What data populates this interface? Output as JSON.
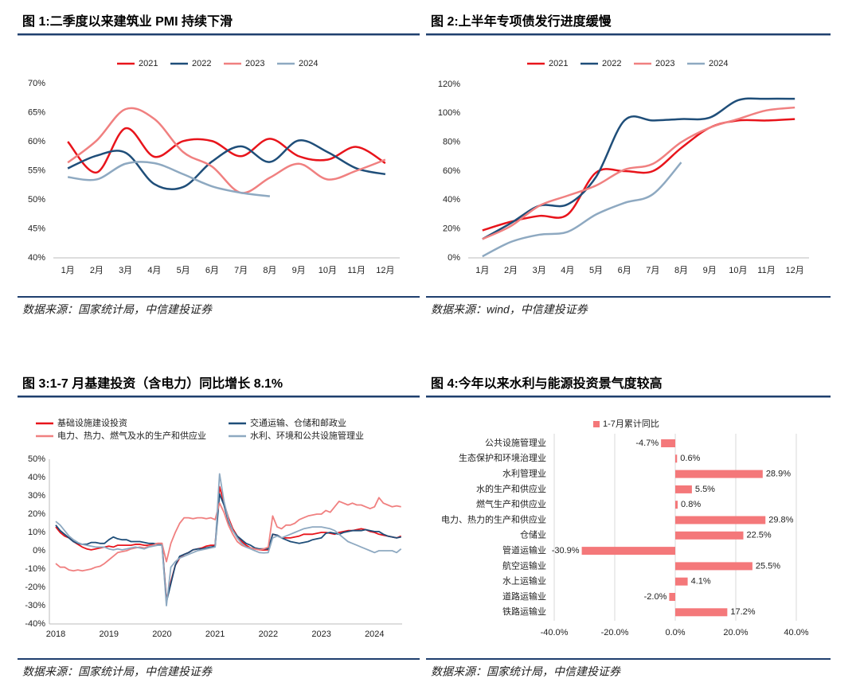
{
  "chart_data": [
    {
      "type": "line",
      "smooth": true,
      "title": "图 1:二季度以来建筑业 PMI 持续下滑",
      "source": "数据来源：国家统计局，中信建投证券",
      "categories": [
        "1月",
        "2月",
        "3月",
        "4月",
        "5月",
        "6月",
        "7月",
        "8月",
        "9月",
        "10月",
        "11月",
        "12月"
      ],
      "ylim": [
        40,
        70
      ],
      "yticks": [
        {
          "value": 40,
          "label": "40%"
        },
        {
          "value": 45,
          "label": "45%"
        },
        {
          "value": 50,
          "label": "50%"
        },
        {
          "value": 55,
          "label": "55%"
        },
        {
          "value": 60,
          "label": "60%"
        },
        {
          "value": 65,
          "label": "65%"
        },
        {
          "value": 70,
          "label": "70%"
        }
      ],
      "series": [
        {
          "name": "2021",
          "color": "#e8141b",
          "values": [
            60.0,
            54.7,
            62.3,
            57.4,
            60.1,
            60.1,
            57.5,
            60.5,
            57.5,
            56.9,
            59.1,
            56.3
          ]
        },
        {
          "name": "2022",
          "color": "#1f4e79",
          "values": [
            55.4,
            57.6,
            58.1,
            52.7,
            52.2,
            56.6,
            59.2,
            56.5,
            60.2,
            58.2,
            55.4,
            54.4
          ]
        },
        {
          "name": "2023",
          "color": "#f08080",
          "values": [
            56.4,
            60.2,
            65.6,
            63.9,
            58.2,
            55.7,
            51.2,
            53.8,
            56.2,
            53.5,
            55.0,
            56.9
          ]
        },
        {
          "name": "2024",
          "color": "#8ea9c1",
          "values": [
            53.9,
            53.5,
            56.2,
            56.3,
            54.4,
            52.3,
            51.2,
            50.6,
            null,
            null,
            null,
            null
          ]
        }
      ]
    },
    {
      "type": "line",
      "smooth": true,
      "title": "图 2:上半年专项债发行进度缓慢",
      "source": "数据来源：wind，中信建投证券",
      "categories": [
        "1月",
        "2月",
        "3月",
        "4月",
        "5月",
        "6月",
        "7月",
        "8月",
        "9月",
        "10月",
        "11月",
        "12月"
      ],
      "ylim": [
        0,
        120
      ],
      "yticks": [
        {
          "value": 0,
          "label": "0%"
        },
        {
          "value": 20,
          "label": "20%"
        },
        {
          "value": 40,
          "label": "40%"
        },
        {
          "value": 60,
          "label": "60%"
        },
        {
          "value": 80,
          "label": "80%"
        },
        {
          "value": 100,
          "label": "100%"
        },
        {
          "value": 120,
          "label": "120%"
        }
      ],
      "series": [
        {
          "name": "2021",
          "color": "#e8141b",
          "values": [
            19,
            25,
            29,
            30,
            59,
            60,
            60,
            76,
            90,
            95,
            95,
            96
          ]
        },
        {
          "name": "2022",
          "color": "#1f4e79",
          "values": [
            13,
            24,
            36,
            37,
            56,
            95,
            95,
            96,
            97,
            109,
            110,
            110
          ]
        },
        {
          "name": "2023",
          "color": "#f08080",
          "values": [
            13,
            22,
            36,
            43,
            50,
            61,
            65,
            80,
            90,
            96,
            102,
            104
          ]
        },
        {
          "name": "2024",
          "color": "#8ea9c1",
          "values": [
            1,
            11,
            16,
            18,
            30,
            38,
            44,
            66,
            null,
            null,
            null,
            null
          ]
        }
      ]
    },
    {
      "type": "line",
      "smooth": false,
      "title": "图 3:1-7 月基建投资（含电力）同比增长 8.1%",
      "source": "数据来源：国家统计局，中信建投证券",
      "categories": [
        "2018",
        null,
        null,
        null,
        null,
        null,
        null,
        null,
        null,
        null,
        null,
        null,
        "2019",
        null,
        null,
        null,
        null,
        null,
        null,
        null,
        null,
        null,
        null,
        null,
        "2020",
        null,
        null,
        null,
        null,
        null,
        null,
        null,
        null,
        null,
        null,
        null,
        "2021",
        null,
        null,
        null,
        null,
        null,
        null,
        null,
        null,
        null,
        null,
        null,
        "2022",
        null,
        null,
        null,
        null,
        null,
        null,
        null,
        null,
        null,
        null,
        null,
        "2023",
        null,
        null,
        null,
        null,
        null,
        null,
        null,
        null,
        null,
        null,
        null,
        "2024",
        null,
        null,
        null,
        null,
        null,
        null
      ],
      "ylim": [
        -40,
        50
      ],
      "yticks": [
        {
          "value": -40,
          "label": "-40%"
        },
        {
          "value": -30,
          "label": "-30%"
        },
        {
          "value": -20,
          "label": "-20%"
        },
        {
          "value": -10,
          "label": "-10%"
        },
        {
          "value": 0,
          "label": "0%"
        },
        {
          "value": 10,
          "label": "10%"
        },
        {
          "value": 20,
          "label": "20%"
        },
        {
          "value": 30,
          "label": "30%"
        },
        {
          "value": 40,
          "label": "40%"
        },
        {
          "value": 50,
          "label": "50%"
        }
      ],
      "series": [
        {
          "name": "基础设施建设投资",
          "color": "#e8141b",
          "values": [
            13,
            10,
            8,
            7,
            5,
            3.5,
            2,
            1,
            0.5,
            1,
            1.5,
            2,
            2.5,
            2,
            3,
            3,
            3,
            3,
            3.5,
            3.5,
            3,
            3,
            3.5,
            4,
            4,
            -27,
            -17,
            -8,
            -4,
            -2,
            -1,
            0.5,
            1,
            1.5,
            2.5,
            3,
            3,
            35,
            26,
            18,
            12,
            8,
            5,
            3,
            1.5,
            1,
            0.5,
            0.4,
            0.5,
            9,
            8.5,
            7,
            7,
            7,
            7.5,
            8,
            9,
            9,
            9,
            9.5,
            10,
            10,
            9.5,
            9,
            10,
            10.5,
            11,
            11,
            11.5,
            12,
            11.5,
            10.5,
            10,
            9,
            8.5,
            8,
            7.5,
            7,
            8
          ]
        },
        {
          "name": "交通运输、仓储和邮政业",
          "color": "#1f4e79",
          "values": [
            14,
            11,
            9,
            7,
            5,
            4,
            3.5,
            3.5,
            4.5,
            4.5,
            4,
            4,
            6,
            7.5,
            6.5,
            6,
            6,
            5,
            5,
            5,
            4.5,
            4,
            4,
            3.5,
            3.5,
            -28,
            -18,
            -8,
            -3,
            -2,
            -1,
            0.5,
            1,
            1,
            1.5,
            2,
            2.5,
            31,
            25,
            16,
            11,
            8,
            6,
            4,
            3,
            1.5,
            1,
            1,
            1,
            9,
            8.5,
            7,
            6,
            5,
            4.5,
            4,
            4.5,
            5,
            6,
            6.5,
            7,
            9.5,
            10,
            9.5,
            9,
            10,
            10.5,
            11,
            11,
            11,
            11.5,
            11,
            10.5,
            10.5,
            9,
            8,
            7.5,
            7,
            7.5
          ]
        },
        {
          "name": "电力、热力、燃气及水的生产和供应业",
          "color": "#f08080",
          "values": [
            -7,
            -9,
            -9,
            -10.5,
            -11,
            -10.5,
            -11,
            -10.5,
            -10,
            -9,
            -8.5,
            -7,
            -5,
            -3,
            -1,
            -0.5,
            0,
            1,
            1.5,
            2,
            1.5,
            2.5,
            3,
            4,
            4,
            -6,
            4,
            10,
            15,
            18,
            18,
            17.5,
            18,
            18,
            17.5,
            18,
            17,
            26,
            21,
            14,
            9,
            5,
            3,
            2,
            1.5,
            1,
            0.5,
            1,
            2,
            19,
            13,
            12,
            14,
            14,
            15,
            17,
            18,
            19,
            19.5,
            20,
            20,
            22,
            21,
            24,
            27,
            26,
            25,
            26,
            25,
            25,
            24,
            23,
            24,
            29,
            26,
            25,
            24,
            24.5,
            24
          ]
        },
        {
          "name": "水利、环境和公共设施管理业",
          "color": "#8ea9c1",
          "values": [
            16,
            14,
            11,
            8,
            6,
            4.5,
            3.5,
            3,
            2.5,
            2,
            2,
            2,
            1,
            0.5,
            1,
            0.5,
            1,
            1.5,
            2,
            1.5,
            1,
            2,
            2.5,
            3,
            3,
            -30,
            -9,
            -6,
            -4,
            -3,
            -2,
            -1,
            0,
            0.5,
            1,
            1.5,
            2,
            42,
            27,
            17,
            11,
            7,
            4,
            2,
            1,
            0,
            -1,
            -1.2,
            -1,
            7,
            8,
            7,
            8,
            9,
            10,
            11,
            12,
            12.5,
            13,
            13,
            13,
            12.5,
            12,
            11,
            9,
            7,
            5,
            4,
            3,
            2,
            1,
            0,
            -1,
            0,
            0,
            0,
            0,
            -1,
            1
          ]
        }
      ]
    },
    {
      "type": "barh",
      "title": "图 4:今年以来水利与能源投资景气度较高",
      "source": "数据来源：国家统计局，中信建投证券",
      "categories": [
        "公共设施管理业",
        "生态保护和环境治理业",
        "水利管理业",
        "水的生产和供应业",
        "燃气生产和供应业",
        "电力、热力的生产和供应业",
        "仓储业",
        "管道运输业",
        "航空运输业",
        "水上运输业",
        "道路运输业",
        "铁路运输业"
      ],
      "xlim": [
        -40,
        40
      ],
      "xticks": [
        {
          "value": -40,
          "label": "-40.0%"
        },
        {
          "value": -20,
          "label": "-20.0%"
        },
        {
          "value": 0,
          "label": "0.0%"
        },
        {
          "value": 20,
          "label": "20.0%"
        },
        {
          "value": 40,
          "label": "40.0%"
        }
      ],
      "grid": true,
      "series": [
        {
          "name": "1-7月累计同比",
          "color": "#f4787a",
          "values": [
            -4.7,
            0.6,
            28.9,
            5.5,
            0.8,
            29.8,
            22.5,
            -30.9,
            25.5,
            4.1,
            -2.0,
            17.2
          ],
          "value_labels": [
            "-4.7%",
            "0.6%",
            "28.9%",
            "5.5%",
            "0.8%",
            "29.8%",
            "22.5%",
            "-30.9%",
            "25.5%",
            "4.1%",
            "-2.0%",
            "17.2%"
          ]
        }
      ]
    }
  ]
}
